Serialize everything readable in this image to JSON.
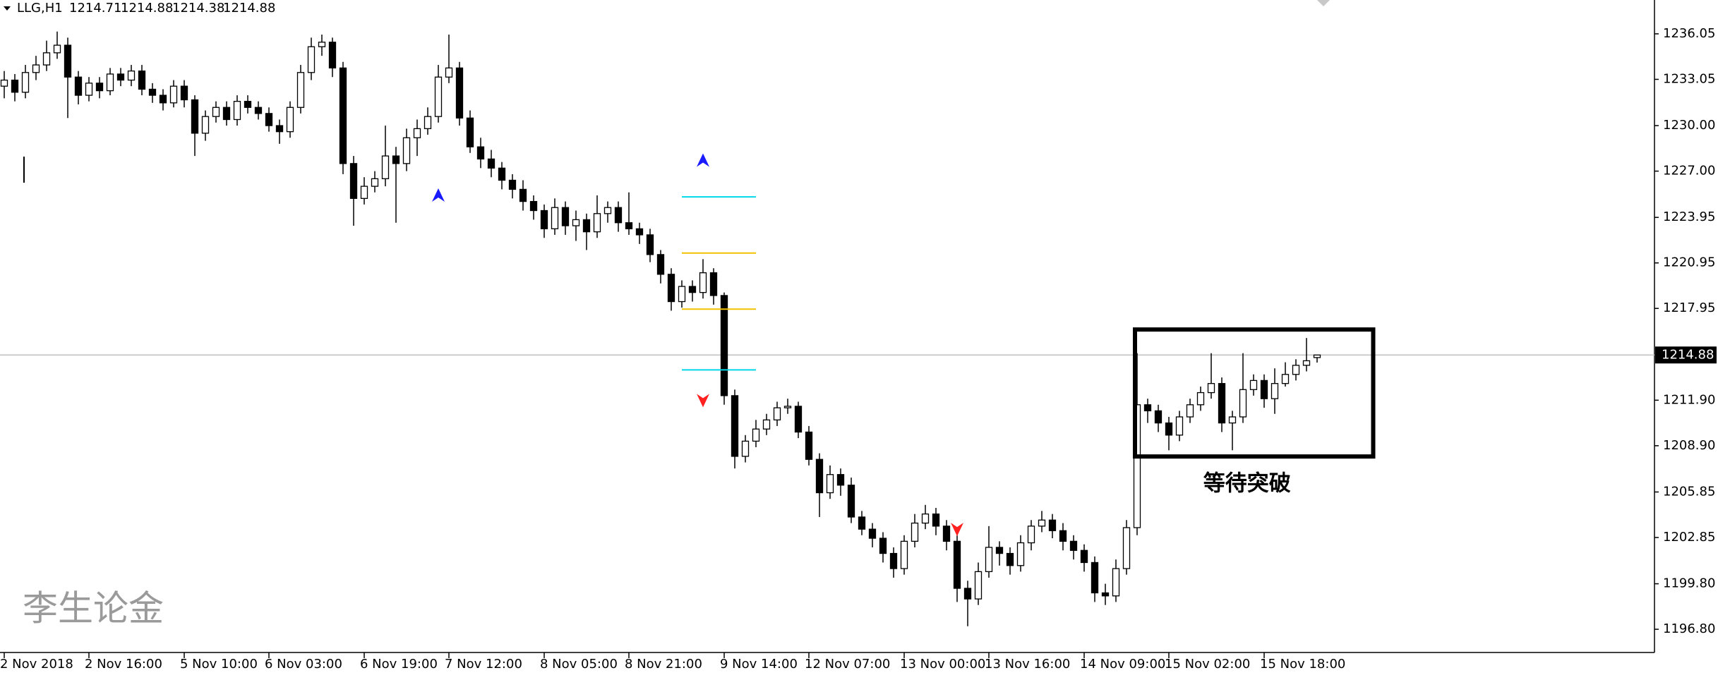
{
  "chart_data": {
    "type": "candlestick",
    "symbol": "LLG,H1",
    "ohlc_header": [
      1214.71,
      1214.88,
      1214.38,
      1214.88
    ],
    "annotation": "等待突破",
    "watermark": "李生论金",
    "up_color": "#ffffff",
    "down_color": "#000000",
    "categories": [
      "2 Nov 2018",
      null,
      null,
      null,
      null,
      null,
      null,
      null,
      "2 Nov 16:00",
      null,
      null,
      null,
      null,
      null,
      null,
      null,
      null,
      "5 Nov 10:00",
      null,
      null,
      null,
      null,
      null,
      null,
      null,
      "6 Nov 03:00",
      null,
      null,
      null,
      null,
      null,
      null,
      null,
      null,
      "6 Nov 19:00",
      null,
      null,
      null,
      null,
      null,
      null,
      null,
      "7 Nov 12:00",
      null,
      null,
      null,
      null,
      null,
      null,
      null,
      null,
      "8 Nov 05:00",
      null,
      null,
      null,
      null,
      null,
      null,
      null,
      "8 Nov 21:00",
      null,
      null,
      null,
      null,
      null,
      null,
      null,
      null,
      "9 Nov 14:00",
      null,
      null,
      null,
      null,
      null,
      null,
      null,
      "12 Nov 07:00",
      null,
      null,
      null,
      null,
      null,
      null,
      null,
      null,
      "13 Nov 00:00",
      null,
      null,
      null,
      null,
      null,
      null,
      null,
      "13 Nov 16:00",
      null,
      null,
      null,
      null,
      null,
      null,
      null,
      null,
      "14 Nov 09:00",
      null,
      null,
      null,
      null,
      null,
      null,
      null,
      "15 Nov 02:00",
      null,
      null,
      null,
      null,
      null,
      null,
      null,
      null,
      "15 Nov 18:00",
      null,
      null,
      null,
      null,
      null
    ],
    "open": [
      1232.6,
      1233.0,
      1232.2,
      1233.5,
      1234.0,
      1234.8,
      1235.3,
      1233.2,
      1232.0,
      1232.8,
      1232.3,
      1233.4,
      1233.0,
      1233.6,
      1232.4,
      1232.0,
      1231.5,
      1232.6,
      1231.7,
      1229.5,
      1230.6,
      1231.2,
      1230.4,
      1231.6,
      1231.2,
      1230.8,
      1230.0,
      1229.6,
      1231.2,
      1233.5,
      1235.2,
      1235.5,
      1233.8,
      1227.5,
      1225.2,
      1226.0,
      1226.5,
      1228.0,
      1227.5,
      1229.2,
      1229.8,
      1230.6,
      1233.2,
      1233.8,
      1230.5,
      1228.6,
      1227.8,
      1227.2,
      1226.4,
      1225.8,
      1225.0,
      1224.4,
      1223.2,
      1224.6,
      1223.4,
      1223.8,
      1223.0,
      1224.2,
      1224.6,
      1223.6,
      1223.2,
      1222.8,
      1221.5,
      1220.2,
      1218.4,
      1219.4,
      1219.0,
      1220.3,
      1218.8,
      1212.2,
      1208.2,
      1209.2,
      1210.0,
      1210.6,
      1211.4,
      1211.5,
      1209.8,
      1208.0,
      1205.8,
      1207.0,
      1206.3,
      1204.2,
      1203.4,
      1202.8,
      1201.8,
      1200.8,
      1202.6,
      1203.8,
      1204.4,
      1203.6,
      1202.6,
      1199.5,
      1198.8,
      1200.6,
      1202.2,
      1201.8,
      1201.0,
      1202.5,
      1203.6,
      1204.0,
      1203.3,
      1202.6,
      1202.0,
      1201.2,
      1199.2,
      1199.0,
      1200.8,
      1203.5,
      1211.6,
      1211.2,
      1210.4,
      1209.6,
      1210.8,
      1211.6,
      1212.4,
      1213.0,
      1210.4,
      1210.8,
      1212.6,
      1213.2,
      1212.0,
      1213.0,
      1213.6,
      1214.2,
      1214.71
    ],
    "high": [
      1233.6,
      1233.4,
      1234.0,
      1234.6,
      1235.6,
      1236.2,
      1235.8,
      1233.6,
      1233.2,
      1233.2,
      1233.8,
      1233.8,
      1234.0,
      1234.0,
      1232.8,
      1232.4,
      1233.0,
      1233.0,
      1232.0,
      1231.0,
      1231.6,
      1231.6,
      1232.0,
      1232.0,
      1231.6,
      1231.2,
      1230.4,
      1231.6,
      1234.0,
      1235.8,
      1236.0,
      1235.8,
      1234.2,
      1228.0,
      1226.6,
      1227.0,
      1230.0,
      1228.6,
      1229.8,
      1230.4,
      1231.2,
      1234.0,
      1236.0,
      1234.2,
      1231.0,
      1229.2,
      1228.4,
      1227.6,
      1226.8,
      1226.4,
      1225.4,
      1224.8,
      1225.2,
      1225.0,
      1224.4,
      1224.2,
      1225.4,
      1225.0,
      1225.0,
      1225.6,
      1223.6,
      1223.2,
      1221.8,
      1220.6,
      1219.8,
      1219.8,
      1221.2,
      1220.6,
      1219.0,
      1212.6,
      1209.6,
      1210.6,
      1211.0,
      1211.8,
      1212.0,
      1211.8,
      1210.2,
      1208.4,
      1207.6,
      1207.4,
      1206.8,
      1204.6,
      1203.8,
      1203.2,
      1202.2,
      1203.0,
      1204.4,
      1205.0,
      1204.8,
      1204.0,
      1203.0,
      1200.0,
      1201.2,
      1203.6,
      1202.6,
      1202.2,
      1203.0,
      1204.0,
      1204.6,
      1204.4,
      1203.8,
      1203.0,
      1202.4,
      1201.6,
      1199.8,
      1201.4,
      1204.0,
      1215.0,
      1212.0,
      1211.6,
      1210.8,
      1211.2,
      1212.0,
      1212.8,
      1215.0,
      1213.4,
      1211.2,
      1215.0,
      1213.6,
      1213.6,
      1214.0,
      1214.4,
      1214.6,
      1216.0,
      1214.88
    ],
    "low": [
      1231.8,
      1231.6,
      1231.8,
      1233.0,
      1233.6,
      1234.4,
      1230.5,
      1231.4,
      1231.6,
      1231.8,
      1232.0,
      1232.6,
      1232.6,
      1232.0,
      1231.5,
      1231.0,
      1231.2,
      1231.2,
      1228.0,
      1229.0,
      1230.2,
      1230.0,
      1230.0,
      1230.8,
      1230.4,
      1229.6,
      1228.8,
      1229.2,
      1230.8,
      1233.0,
      1234.6,
      1233.2,
      1226.8,
      1223.4,
      1224.8,
      1225.6,
      1226.0,
      1223.6,
      1227.0,
      1228.0,
      1229.4,
      1230.2,
      1232.8,
      1230.0,
      1228.2,
      1227.2,
      1226.6,
      1225.8,
      1225.2,
      1224.4,
      1223.8,
      1222.6,
      1222.8,
      1222.8,
      1222.4,
      1221.8,
      1222.6,
      1223.6,
      1223.0,
      1222.8,
      1222.2,
      1221.0,
      1219.6,
      1217.8,
      1218.0,
      1218.4,
      1218.6,
      1218.2,
      1211.6,
      1207.4,
      1207.8,
      1208.8,
      1209.6,
      1210.2,
      1211.0,
      1209.4,
      1207.6,
      1204.2,
      1205.4,
      1205.6,
      1203.8,
      1203.0,
      1202.2,
      1201.2,
      1200.2,
      1200.4,
      1202.2,
      1203.4,
      1203.0,
      1202.0,
      1198.6,
      1197.0,
      1198.4,
      1200.2,
      1201.0,
      1200.4,
      1200.6,
      1202.0,
      1203.2,
      1202.8,
      1202.0,
      1201.4,
      1200.6,
      1198.6,
      1198.4,
      1198.6,
      1200.4,
      1203.0,
      1210.4,
      1209.8,
      1208.6,
      1209.2,
      1210.4,
      1211.2,
      1212.0,
      1209.8,
      1208.6,
      1210.4,
      1212.2,
      1211.4,
      1211.0,
      1212.8,
      1213.2,
      1213.8,
      1214.38
    ],
    "close": [
      1233.0,
      1232.2,
      1233.5,
      1234.0,
      1234.8,
      1235.3,
      1233.2,
      1232.0,
      1232.8,
      1232.3,
      1233.4,
      1233.0,
      1233.6,
      1232.4,
      1232.0,
      1231.5,
      1232.6,
      1231.7,
      1229.5,
      1230.6,
      1231.2,
      1230.4,
      1231.6,
      1231.2,
      1230.8,
      1230.0,
      1229.6,
      1231.2,
      1233.5,
      1235.2,
      1235.5,
      1233.8,
      1227.5,
      1225.2,
      1226.0,
      1226.5,
      1228.0,
      1227.5,
      1229.2,
      1229.8,
      1230.6,
      1233.2,
      1233.8,
      1230.5,
      1228.6,
      1227.8,
      1227.2,
      1226.4,
      1225.8,
      1225.0,
      1224.4,
      1223.2,
      1224.6,
      1223.4,
      1223.8,
      1223.0,
      1224.2,
      1224.6,
      1223.6,
      1223.2,
      1222.8,
      1221.5,
      1220.2,
      1218.4,
      1219.4,
      1219.0,
      1220.3,
      1218.8,
      1212.2,
      1208.2,
      1209.2,
      1210.0,
      1210.6,
      1211.4,
      1211.5,
      1209.8,
      1208.0,
      1205.8,
      1207.0,
      1206.3,
      1204.2,
      1203.4,
      1202.8,
      1201.8,
      1200.8,
      1202.6,
      1203.8,
      1204.4,
      1203.6,
      1202.6,
      1199.5,
      1198.8,
      1200.6,
      1202.2,
      1201.8,
      1201.0,
      1202.5,
      1203.6,
      1204.0,
      1203.3,
      1202.6,
      1202.0,
      1201.2,
      1199.2,
      1199.0,
      1200.8,
      1203.5,
      1211.6,
      1211.2,
      1210.4,
      1209.6,
      1210.8,
      1211.6,
      1212.4,
      1213.0,
      1210.4,
      1210.8,
      1212.6,
      1213.2,
      1212.0,
      1213.0,
      1213.6,
      1214.2,
      1214.5,
      1214.88
    ],
    "last_price": 1214.88,
    "levels": [
      {
        "color": "#00d8e8",
        "value": 1225.3,
        "bars": [
          64,
          71
        ]
      },
      {
        "color": "#f2c200",
        "value": 1221.6,
        "bars": [
          64,
          71
        ]
      },
      {
        "color": "#f2c200",
        "value": 1217.9,
        "bars": [
          64,
          71
        ]
      },
      {
        "color": "#00d8e8",
        "value": 1213.9,
        "bars": [
          64,
          71
        ]
      }
    ],
    "signals": [
      {
        "direction": "up",
        "color": "#1a1aff",
        "bar": 41,
        "price": 1225.4
      },
      {
        "direction": "up",
        "color": "#1a1aff",
        "bar": 66,
        "price": 1227.7
      },
      {
        "direction": "down",
        "color": "#ff2020",
        "bar": 66,
        "price": 1211.9
      },
      {
        "direction": "down",
        "color": "#ff2020",
        "bar": 90,
        "price": 1203.4
      }
    ],
    "box": {
      "bars": [
        106.8,
        129.3
      ],
      "price": [
        1216.56,
        1208.19
      ]
    },
    "ylim": [
      1195.27,
      1238.28
    ],
    "yticks": [
      1236.05,
      1233.05,
      {
        "value": 1230,
        "label": "1230.00"
      },
      {
        "value": 1227,
        "label": "1227.00"
      },
      1223.95,
      1220.95,
      1217.95,
      {
        "value": 1211.9,
        "label": "1211.90"
      },
      {
        "value": 1208.9,
        "label": "1208.90"
      },
      1205.85,
      1202.85,
      {
        "value": 1199.8,
        "label": "1199.80"
      },
      {
        "value": 1196.8,
        "label": "1196.80"
      }
    ]
  }
}
